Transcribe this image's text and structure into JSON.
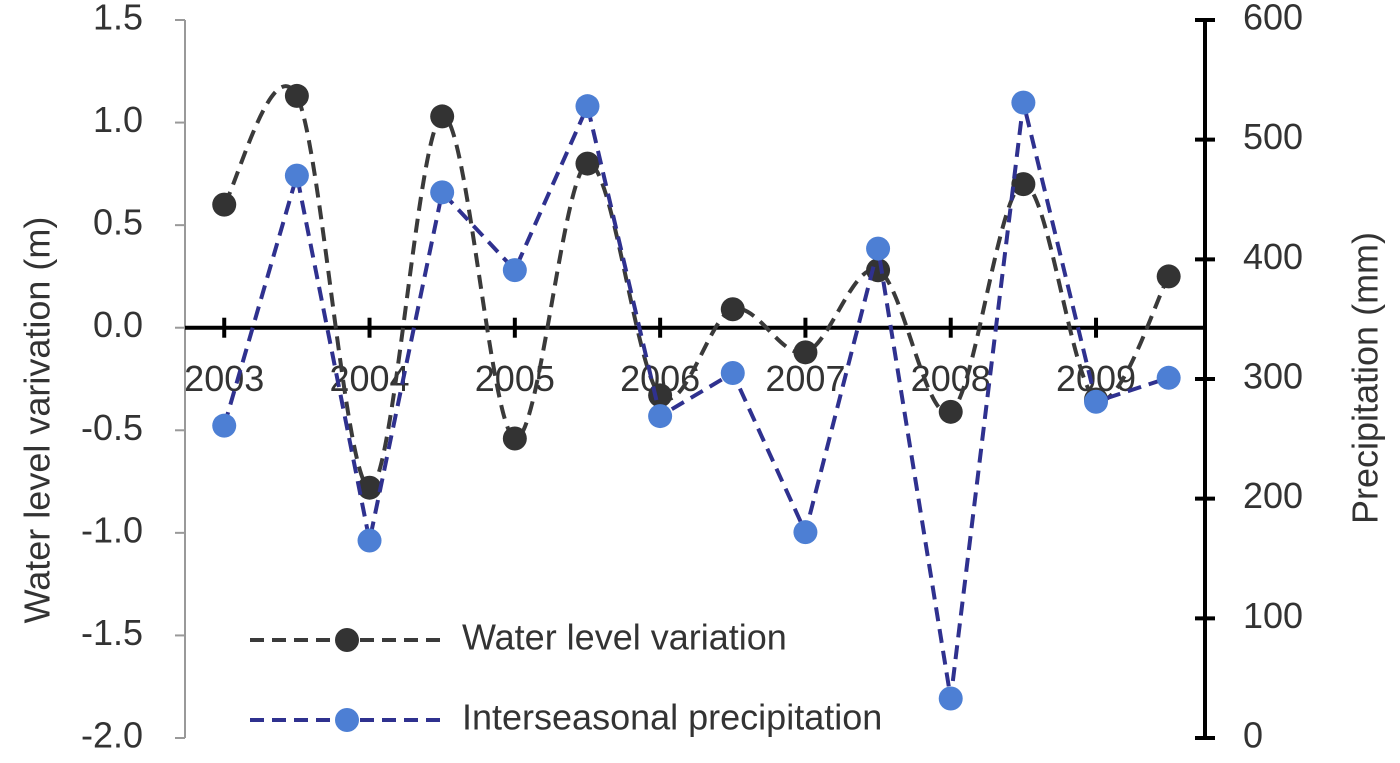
{
  "chart_data": {
    "type": "line",
    "y_label": "Water level varivation (m)",
    "y2_label": "Precipitation (mm)",
    "x": [
      2003,
      2003.5,
      2004,
      2004.5,
      2005,
      2005.5,
      2006,
      2006.5,
      2007,
      2007.5,
      2008,
      2008.5,
      2009,
      2009.5
    ],
    "xlim": [
      2002.73,
      2009.75
    ],
    "xticks": [
      2003,
      2004,
      2005,
      2006,
      2007,
      2008,
      2009
    ],
    "ylim": [
      -2,
      1.5
    ],
    "yticks": [
      {
        "value": -2,
        "label": "-2.0"
      },
      -1.5,
      {
        "value": -1,
        "label": "-1.0"
      },
      -0.5,
      {
        "value": 0,
        "label": "0.0"
      },
      0.5,
      {
        "value": 1,
        "label": "1.0"
      },
      1.5
    ],
    "y2lim": [
      0,
      600
    ],
    "y2ticks": [
      0,
      100,
      200,
      300,
      400,
      500,
      600
    ],
    "legend": "lower left",
    "series": [
      {
        "name": "Water level variation",
        "color": "#3a3a3a",
        "marker_color": "#333333",
        "smooth": true,
        "values": [
          0.6,
          1.13,
          -0.78,
          1.03,
          -0.54,
          0.8,
          -0.33,
          0.09,
          -0.12,
          0.28,
          -0.41,
          0.7,
          -0.35,
          0.25
        ]
      },
      {
        "name": "Interseasonal precipitation",
        "color": "#2f318f",
        "marker_color": "#4d7fd4",
        "smooth": false,
        "axis": "y2",
        "values": [
          261,
          470,
          165,
          456,
          391,
          528,
          269,
          305,
          172,
          409,
          33,
          531,
          281,
          301
        ]
      }
    ]
  }
}
